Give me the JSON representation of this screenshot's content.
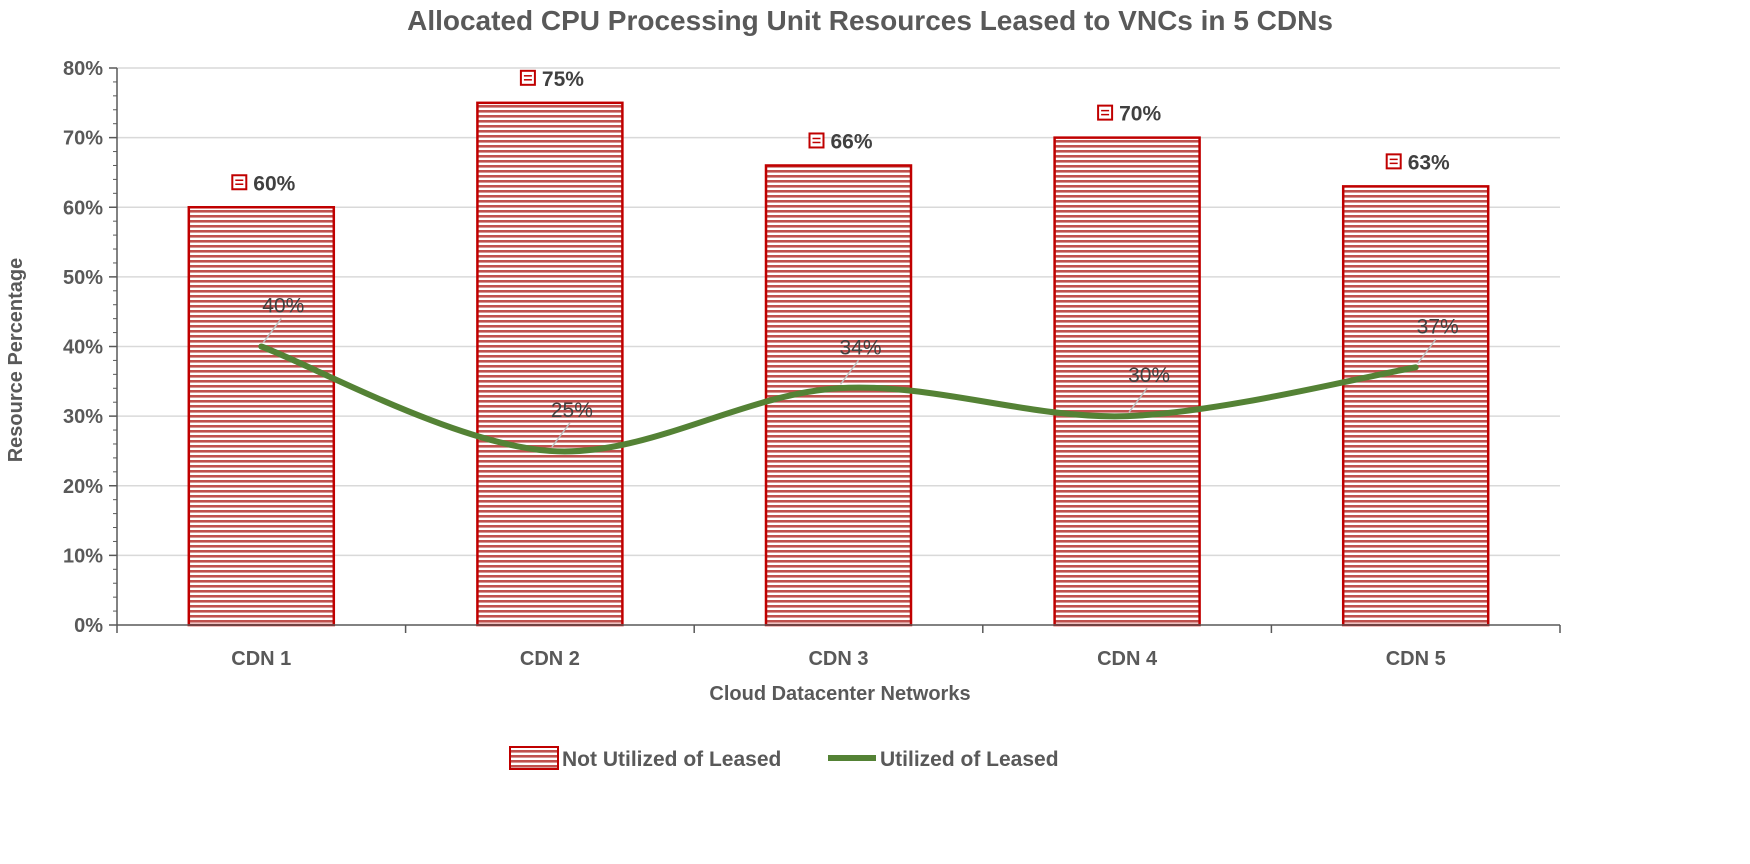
{
  "chart_data": {
    "type": "bar",
    "title": "Allocated CPU Processing Unit Resources Leased to VNCs in 5 CDNs",
    "xlabel": "Cloud Datacenter Networks",
    "ylabel": "Resource Percentage",
    "categories": [
      "CDN 1",
      "CDN 2",
      "CDN 3",
      "CDN 4",
      "CDN 5"
    ],
    "ylim": [
      0,
      80
    ],
    "yticks": [
      0,
      10,
      20,
      30,
      40,
      50,
      60,
      70,
      80
    ],
    "ytick_labels": [
      "0%",
      "10%",
      "20%",
      "30%",
      "40%",
      "50%",
      "60%",
      "70%",
      "80%"
    ],
    "grid": true,
    "legend_position": "bottom",
    "series": [
      {
        "name": "Not Utilized of Leased",
        "type": "bar",
        "color": "#c00000",
        "values": [
          60,
          75,
          66,
          70,
          63
        ],
        "labels": [
          "60%",
          "75%",
          "66%",
          "70%",
          "63%"
        ]
      },
      {
        "name": "Utilized of Leased",
        "type": "line",
        "color": "#548235",
        "values": [
          40,
          25,
          34,
          30,
          37
        ],
        "labels": [
          "40%",
          "25%",
          "34%",
          "30%",
          "37%"
        ]
      }
    ]
  }
}
